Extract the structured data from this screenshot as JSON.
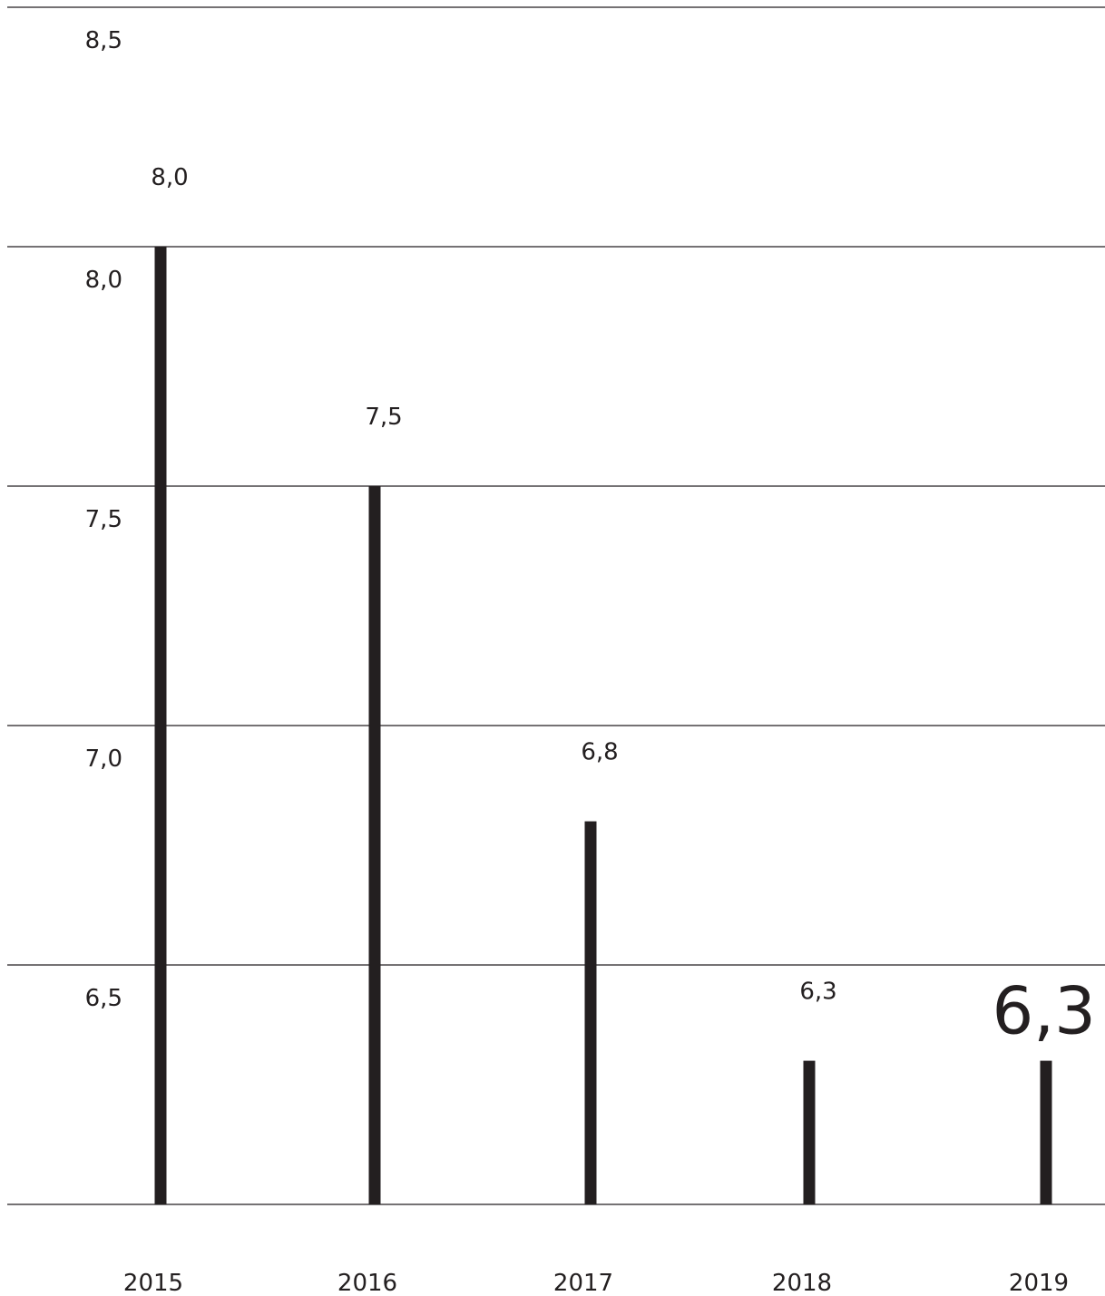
{
  "chart_data": {
    "type": "bar",
    "categories": [
      "2015",
      "2016",
      "2017",
      "2018",
      "2019"
    ],
    "values": [
      8.0,
      7.5,
      6.8,
      6.3,
      6.3
    ],
    "data_labels": [
      "8,0",
      "7,5",
      "6,8",
      "6,3",
      "6,3"
    ],
    "highlight_index": 4,
    "title": "",
    "xlabel": "",
    "ylabel": "",
    "ylim": [
      6.0,
      8.5
    ],
    "yticks": [
      {
        "value": 8.5,
        "label": "8,5"
      },
      {
        "value": 8.0,
        "label": "8,0"
      },
      {
        "value": 7.5,
        "label": "7,5"
      },
      {
        "value": 7.0,
        "label": "7,0"
      },
      {
        "value": 6.5,
        "label": "6,5"
      }
    ],
    "grid": true,
    "legend": "none",
    "colors": {
      "bar": "#231f20",
      "grid": "#231f20",
      "text": "#231f20",
      "background": "#ffffff"
    }
  }
}
